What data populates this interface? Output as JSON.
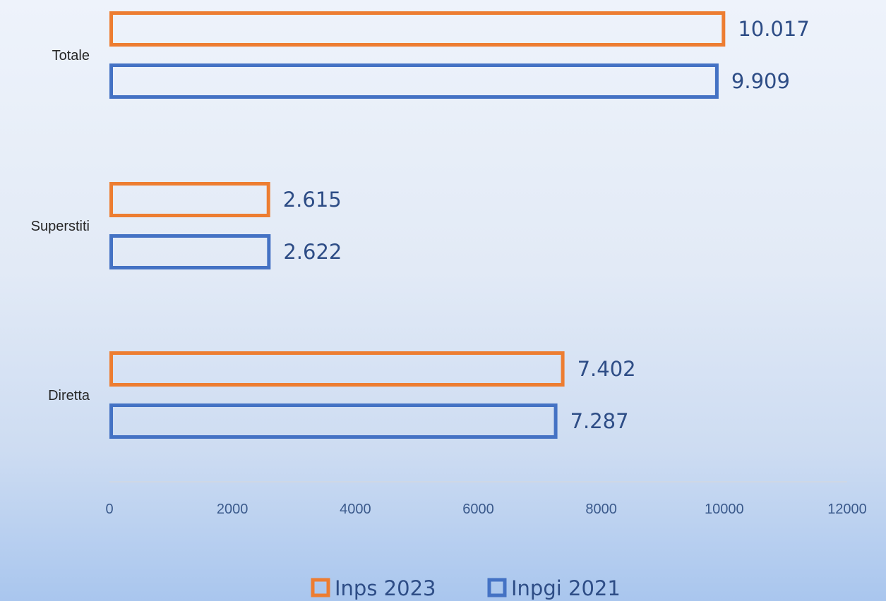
{
  "chart_data": {
    "type": "bar",
    "orientation": "horizontal",
    "categories": [
      "Diretta",
      "Superstiti",
      "Totale"
    ],
    "series": [
      {
        "name": "Inps 2023",
        "values": [
          7402,
          2615,
          10017
        ],
        "labels": [
          "7.402",
          "2.615",
          "10.017"
        ],
        "color": "#ed7d31"
      },
      {
        "name": "Inpgi 2021",
        "values": [
          7287,
          2622,
          9909
        ],
        "labels": [
          "7.287",
          "2.622",
          "9.909"
        ],
        "color": "#4472c4"
      }
    ],
    "xlim": [
      0,
      12000
    ],
    "xticks": [
      "0",
      "2000",
      "4000",
      "6000",
      "8000",
      "10000",
      "12000"
    ],
    "bar_style": "outline",
    "legend_position": "bottom",
    "grid": false
  }
}
